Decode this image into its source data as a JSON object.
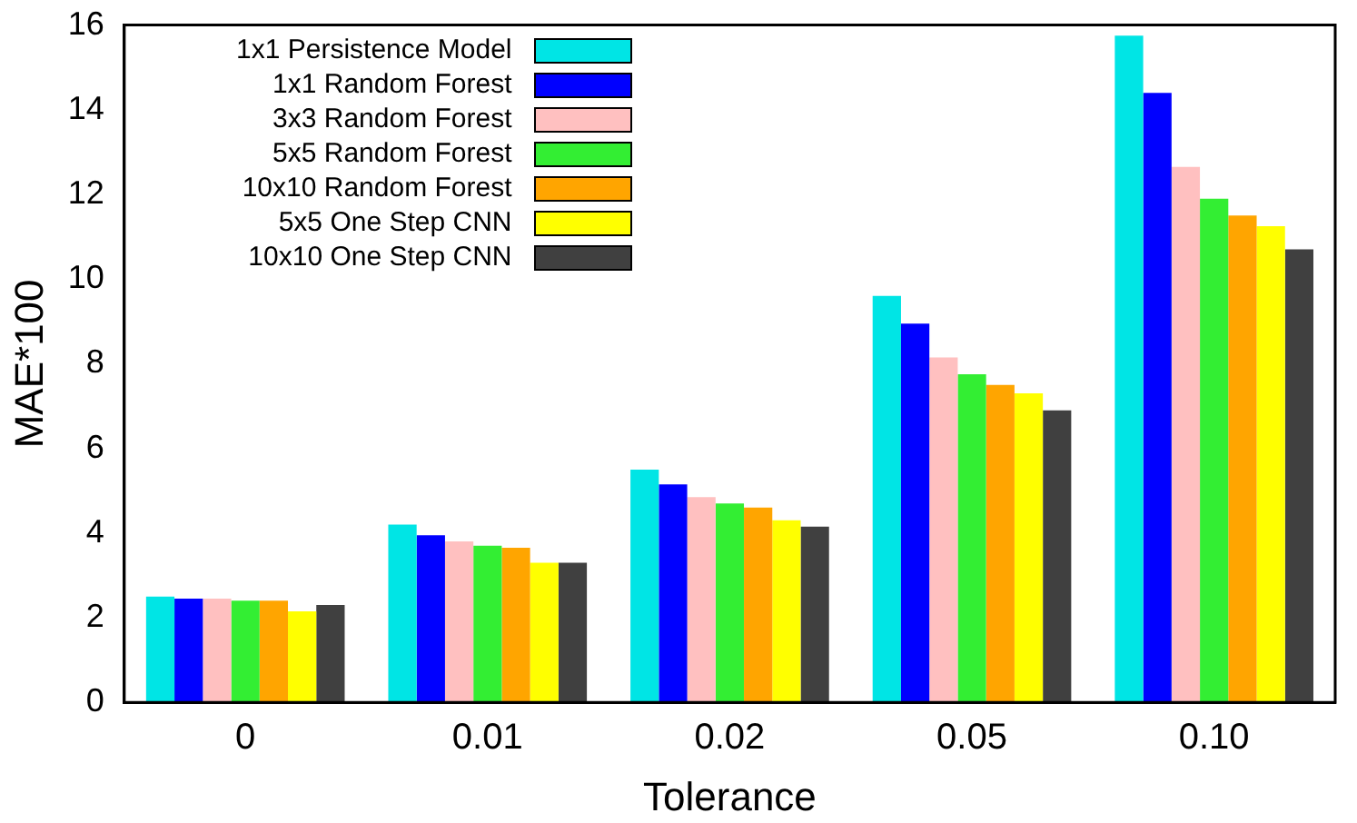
{
  "chart_data": {
    "type": "bar",
    "xlabel": "Tolerance",
    "ylabel": "MAE*100",
    "categories": [
      "0",
      "0.01",
      "0.02",
      "0.05",
      "0.10"
    ],
    "series": [
      {
        "name": "1x1 Persistence Model",
        "color": "#00e5e5",
        "values": [
          2.5,
          4.2,
          5.5,
          9.6,
          15.75
        ]
      },
      {
        "name": "1x1 Random Forest",
        "color": "#0000ff",
        "values": [
          2.45,
          3.95,
          5.15,
          8.95,
          14.4
        ]
      },
      {
        "name": "3x3 Random Forest",
        "color": "#ffc0c0",
        "values": [
          2.45,
          3.8,
          4.85,
          8.15,
          12.65
        ]
      },
      {
        "name": "5x5 Random Forest",
        "color": "#33ee33",
        "values": [
          2.4,
          3.7,
          4.7,
          7.75,
          11.9
        ]
      },
      {
        "name": "10x10 Random Forest",
        "color": "#ffa500",
        "values": [
          2.4,
          3.65,
          4.6,
          7.5,
          11.5
        ]
      },
      {
        "name": "5x5 One Step CNN",
        "color": "#ffff00",
        "values": [
          2.15,
          3.3,
          4.3,
          7.3,
          11.25
        ]
      },
      {
        "name": "10x10 One Step CNN",
        "color": "#404040",
        "values": [
          2.3,
          3.3,
          4.15,
          6.9,
          10.7
        ]
      }
    ],
    "ylim": [
      0,
      16
    ],
    "yticks": [
      0,
      2,
      4,
      6,
      8,
      10,
      12,
      14,
      16
    ],
    "grid": false,
    "legend": "top left"
  }
}
